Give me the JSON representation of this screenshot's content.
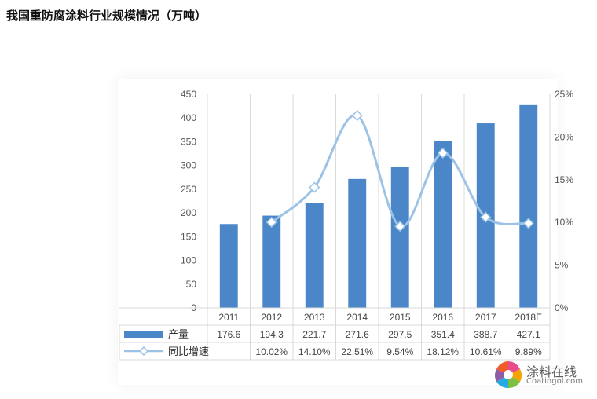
{
  "title": "我国重防腐涂料行业规模情况（万吨）",
  "chart_data": {
    "type": "bar",
    "categories": [
      "2011",
      "2012",
      "2013",
      "2014",
      "2015",
      "2016",
      "2017",
      "2018E"
    ],
    "series": [
      {
        "name": "产量",
        "type": "bar",
        "axis": "left",
        "values": [
          176.6,
          194.3,
          221.7,
          271.6,
          297.5,
          351.4,
          388.7,
          427.1
        ],
        "labels": [
          "176.6",
          "194.3",
          "221.7",
          "271.6",
          "297.5",
          "351.4",
          "388.7",
          "427.1"
        ],
        "color": "#4a86c8"
      },
      {
        "name": "同比增速",
        "type": "line",
        "axis": "right",
        "values": [
          null,
          10.02,
          14.1,
          22.51,
          9.54,
          18.12,
          10.61,
          9.89
        ],
        "labels": [
          "",
          "10.02%",
          "14.10%",
          "22.51%",
          "9.54%",
          "18.12%",
          "10.61%",
          "9.89%"
        ],
        "color": "#9cc3e5"
      }
    ],
    "ylim_left": [
      0,
      450
    ],
    "left_ticks": [
      "0",
      "50",
      "100",
      "150",
      "200",
      "250",
      "300",
      "350",
      "400",
      "450"
    ],
    "ylim_right": [
      0,
      25
    ],
    "right_ticks": [
      "0%",
      "5%",
      "10%",
      "15%",
      "20%",
      "25%"
    ],
    "data_table": true
  },
  "watermark": {
    "name": "涂料在线",
    "domain": "Coatingol.com"
  }
}
